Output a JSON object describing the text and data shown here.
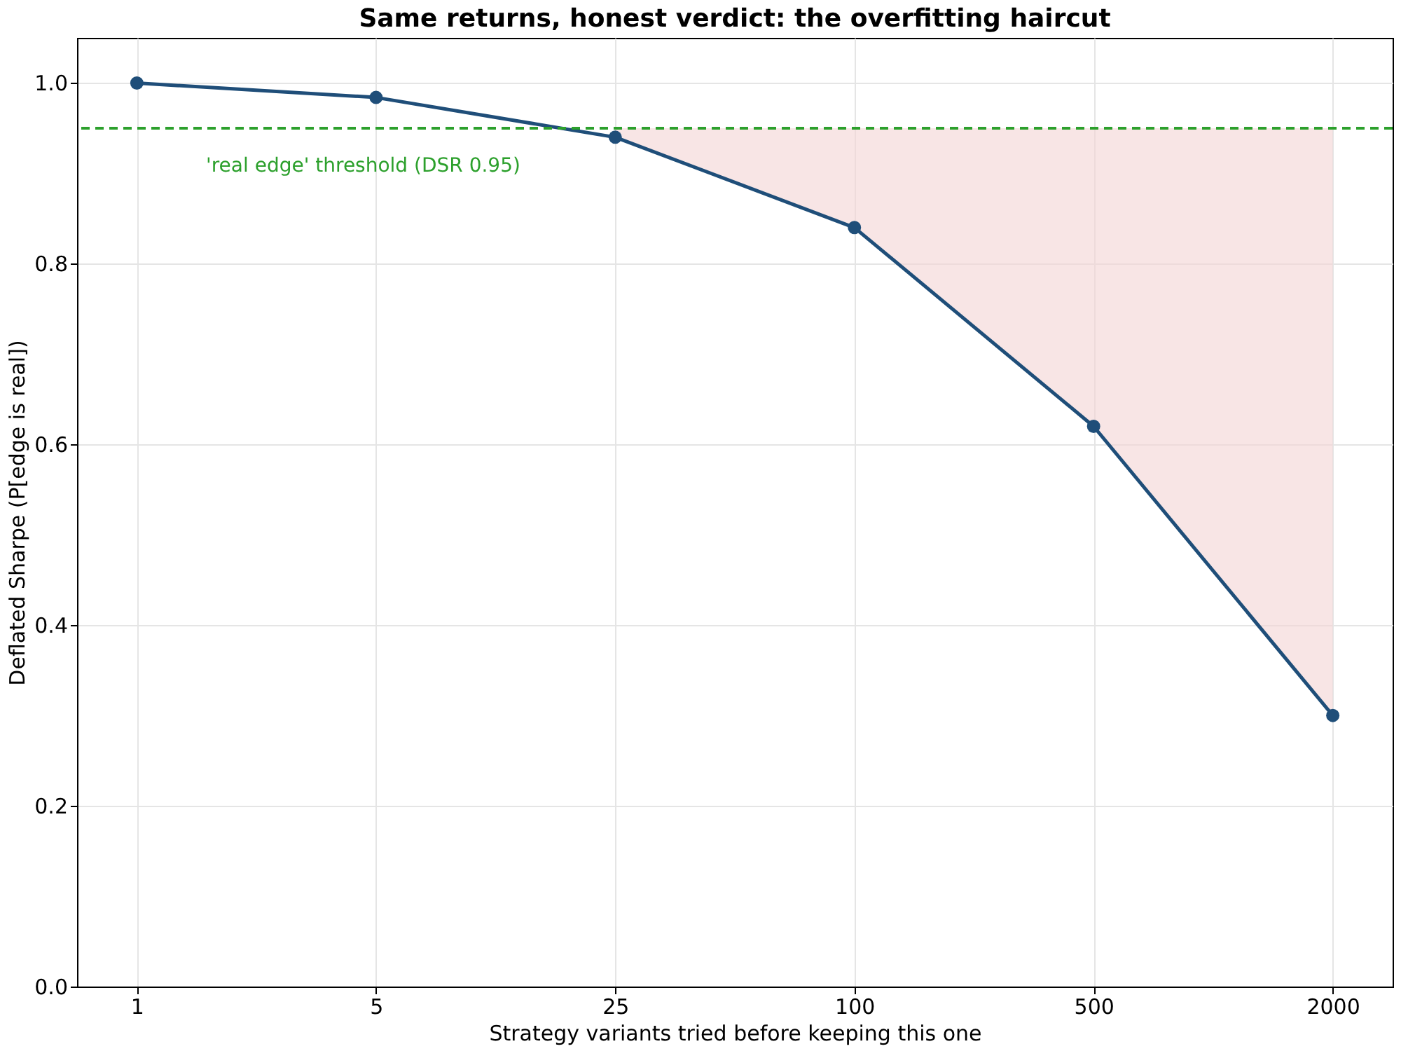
{
  "chart_data": {
    "type": "line",
    "title": "Same returns, honest verdict: the overfitting haircut",
    "xlabel": "Strategy variants tried before keeping this one",
    "ylabel": "Deflated Sharpe (P[edge is real])",
    "categories": [
      "1",
      "5",
      "25",
      "100",
      "500",
      "2000"
    ],
    "series": [
      {
        "color": "#1f4e79",
        "values": [
          1.0,
          0.984,
          0.94,
          0.84,
          0.62,
          0.3
        ],
        "lower": [
          null,
          null,
          0.94,
          0.84,
          0.62,
          0.3
        ],
        "upper": [
          null,
          null,
          0.95,
          0.95,
          0.95,
          0.95
        ]
      }
    ],
    "ylim": [
      0,
      1.05
    ],
    "yticks": [
      {
        "value": 0,
        "label": "0.0"
      },
      {
        "value": 0.2,
        "label": "0.2"
      },
      {
        "value": 0.4,
        "label": "0.4"
      },
      {
        "value": 0.6,
        "label": "0.6"
      },
      {
        "value": 0.8,
        "label": "0.8"
      },
      {
        "value": 1.0,
        "label": "1.0"
      }
    ],
    "ref_lines": [
      {
        "axis": "y",
        "value": 0.95,
        "label": "'real edge' threshold (DSR 0.95)",
        "color": "#2ca02c",
        "line_style": "dashed"
      }
    ],
    "grid": true,
    "marker": "circle",
    "line_style": "solid"
  }
}
